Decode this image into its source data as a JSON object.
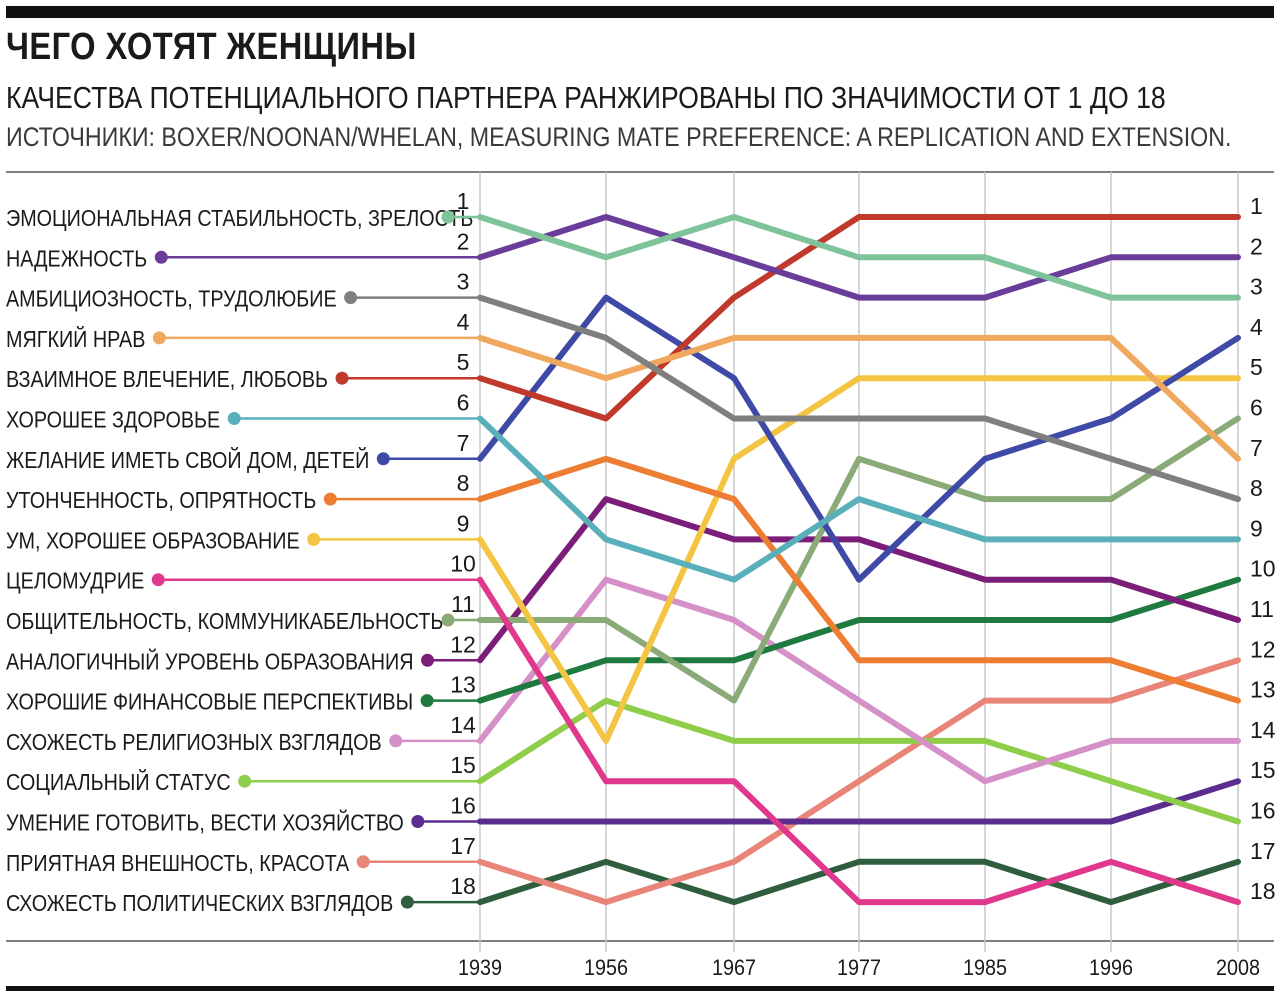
{
  "header": {
    "title": "ЧЕГО ХОТЯТ ЖЕНЩИНЫ",
    "subtitle": "КАЧЕСТВА ПОТЕНЦИАЛЬНОГО ПАРТНЕРА РАНЖИРОВАНЫ ПО ЗНАЧИМОСТИ ОТ 1 ДО 18",
    "source": "ИСТОЧНИКИ: BOXER/NOONAN/WHELAN, MEASURING MATE PREFERENCE: A REPLICATION AND EXTENSION."
  },
  "chart_data": {
    "type": "line",
    "x": [
      "1939",
      "1956",
      "1967",
      "1977",
      "1985",
      "1996",
      "2008"
    ],
    "rank_labels": [
      "1",
      "2",
      "3",
      "4",
      "5",
      "6",
      "7",
      "8",
      "9",
      "10",
      "11",
      "12",
      "13",
      "14",
      "15",
      "16",
      "17",
      "18"
    ],
    "ylim": [
      1,
      18
    ],
    "y_inverted": true,
    "grid": true,
    "legend_placement": "left",
    "series": [
      {
        "name": "ЭМОЦИОНАЛЬНАЯ СТАБИЛЬНОСТЬ, ЗРЕЛОСТЬ",
        "color": "#7fc39a",
        "values": [
          1,
          2,
          1,
          2,
          2,
          3,
          3
        ]
      },
      {
        "name": "НАДЕЖНОСТЬ",
        "color": "#6a3d9a",
        "values": [
          2,
          1,
          2,
          3,
          3,
          2,
          2
        ]
      },
      {
        "name": "АМБИЦИОЗНОСТЬ, ТРУДОЛЮБИЕ",
        "color": "#7f7f7f",
        "values": [
          3,
          4,
          6,
          6,
          6,
          7,
          8
        ]
      },
      {
        "name": "МЯГКИЙ НРАВ",
        "color": "#f0a85e",
        "values": [
          4,
          5,
          4,
          4,
          4,
          4,
          7
        ]
      },
      {
        "name": "ВЗАИМНОЕ ВЛЕЧЕНИЕ, ЛЮБОВЬ",
        "color": "#c0392b",
        "values": [
          5,
          6,
          3,
          1,
          1,
          1,
          1
        ]
      },
      {
        "name": "ХОРОШЕЕ ЗДОРОВЬЕ",
        "color": "#5ab0ba",
        "values": [
          6,
          9,
          10,
          8,
          9,
          9,
          9
        ]
      },
      {
        "name": "ЖЕЛАНИЕ ИМЕТЬ СВОЙ ДОМ, ДЕТЕЙ",
        "color": "#3f4aa6",
        "values": [
          7,
          3,
          5,
          10,
          7,
          6,
          4
        ]
      },
      {
        "name": "УТОНЧЕННОСТЬ, ОПРЯТНОСТЬ",
        "color": "#ee7d34",
        "values": [
          8,
          7,
          8,
          12,
          12,
          12,
          13
        ]
      },
      {
        "name": "УМ, ХОРОШЕЕ ОБРАЗОВАНИЕ",
        "color": "#f4c542",
        "values": [
          9,
          14,
          7,
          5,
          5,
          5,
          5
        ]
      },
      {
        "name": "ЦЕЛОМУДРИЕ",
        "color": "#e0388c",
        "values": [
          10,
          15,
          15,
          18,
          18,
          17,
          18
        ]
      },
      {
        "name": "ОБЩИТЕЛЬНОСТЬ, КОММУНИКАБЕЛЬНОСТЬ",
        "color": "#8aab78",
        "values": [
          11,
          11,
          13,
          7,
          8,
          8,
          6
        ]
      },
      {
        "name": "АНАЛОГИЧНЫЙ УРОВЕНЬ ОБРАЗОВАНИЯ",
        "color": "#7b1e7a",
        "values": [
          12,
          8,
          9,
          9,
          10,
          10,
          11
        ]
      },
      {
        "name": "ХОРОШИЕ ФИНАНСОВЫЕ ПЕРСПЕКТИВЫ",
        "color": "#1f7a3f",
        "values": [
          13,
          12,
          12,
          11,
          11,
          11,
          10
        ]
      },
      {
        "name": "СХОЖЕСТЬ РЕЛИГИОЗНЫХ ВЗГЛЯДОВ",
        "color": "#d690c8",
        "values": [
          14,
          10,
          11,
          13,
          15,
          14,
          14
        ]
      },
      {
        "name": "СОЦИАЛЬНЫЙ СТАТУС",
        "color": "#8fce4a",
        "values": [
          15,
          13,
          14,
          14,
          14,
          15,
          16
        ]
      },
      {
        "name": "УМЕНИЕ ГОТОВИТЬ, ВЕСТИ ХОЗЯЙСТВО",
        "color": "#5a2d8f",
        "values": [
          16,
          16,
          16,
          16,
          16,
          16,
          15
        ]
      },
      {
        "name": "ПРИЯТНАЯ ВНЕШНОСТЬ, КРАСОТА",
        "color": "#e88478",
        "values": [
          17,
          18,
          17,
          15,
          13,
          13,
          12
        ]
      },
      {
        "name": "СХОЖЕСТЬ ПОЛИТИЧЕСКИХ ВЗГЛЯДОВ",
        "color": "#2e5e3e",
        "values": [
          18,
          17,
          18,
          17,
          17,
          18,
          17
        ]
      }
    ]
  }
}
